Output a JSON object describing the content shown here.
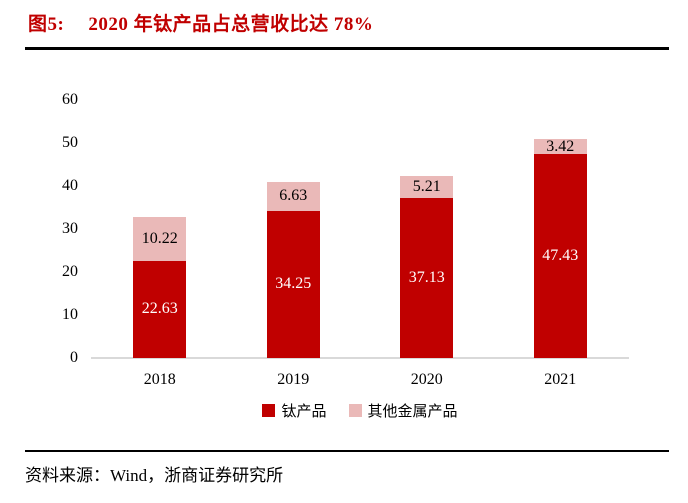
{
  "header": {
    "figure_label": "图5:",
    "title": "2020 年钛产品占总营收比达 78%",
    "accent_color": "#c00000"
  },
  "chart_data": {
    "type": "bar",
    "stacked": true,
    "title": "2020 年钛产品占总营收比达 78%",
    "categories": [
      "2018",
      "2019",
      "2020",
      "2021"
    ],
    "series": [
      {
        "name": "钛产品",
        "color": "#c00000",
        "label_color": "#ffffff",
        "values": [
          22.63,
          34.25,
          37.13,
          47.43
        ]
      },
      {
        "name": "其他金属产品",
        "color": "#eab9b8",
        "label_color": "#000000",
        "values": [
          10.22,
          6.63,
          5.21,
          3.42
        ]
      }
    ],
    "xlabel": "",
    "ylabel": "",
    "ylim": [
      0,
      60
    ],
    "y_ticks": [
      0,
      10,
      20,
      30,
      40,
      50,
      60
    ],
    "grid": false,
    "data_labels": true,
    "legend_position": "bottom",
    "axis_line_color": "#d9d9d9"
  },
  "footer": {
    "source": "资料来源：Wind，浙商证券研究所"
  }
}
